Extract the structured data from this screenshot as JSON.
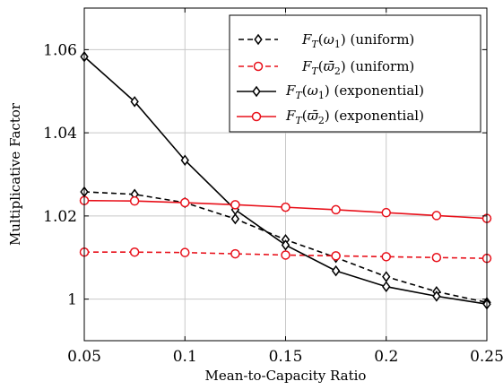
{
  "chart_data": {
    "type": "line",
    "xlabel": "Mean-to-Capacity Ratio",
    "ylabel": "Multiplicative Factor",
    "xlim": [
      0.05,
      0.25
    ],
    "ylim": [
      0.99,
      1.07
    ],
    "xticks": [
      0.05,
      0.1,
      0.15,
      0.2,
      0.25
    ],
    "xtick_labels": [
      "0.05",
      "0.1",
      "0.15",
      "0.2",
      "0.25"
    ],
    "yticks": [
      1.0,
      1.02,
      1.04,
      1.06
    ],
    "ytick_labels": [
      "1",
      "1.02",
      "1.04",
      "1.06"
    ],
    "grid": true,
    "legend_position": "top-right",
    "x": [
      0.05,
      0.075,
      0.1,
      0.125,
      0.15,
      0.175,
      0.2,
      0.225,
      0.25
    ],
    "series": [
      {
        "legend": "F_T(ω1) (uniform)",
        "color": "#000000",
        "dash": "dashed",
        "marker": "diamond",
        "values": [
          1.0258,
          1.0252,
          1.0232,
          1.0193,
          1.0143,
          1.01,
          1.0054,
          1.0018,
          0.9992
        ]
      },
      {
        "legend": "F_T(ϖ2) (uniform)",
        "color": "#e8101a",
        "dash": "dashed",
        "marker": "circle",
        "values": [
          1.0113,
          1.0113,
          1.0112,
          1.0109,
          1.0106,
          1.0104,
          1.0102,
          1.01,
          1.0098
        ]
      },
      {
        "legend": "F_T(ω1) (exponential)",
        "color": "#000000",
        "dash": "solid",
        "marker": "diamond",
        "values": [
          1.0583,
          1.0475,
          1.0334,
          1.0215,
          1.013,
          1.0068,
          1.003,
          1.0007,
          0.9988
        ]
      },
      {
        "legend": "F_T(ϖ2) (exponential)",
        "color": "#e8101a",
        "dash": "solid",
        "marker": "circle",
        "values": [
          1.0237,
          1.0236,
          1.0232,
          1.0227,
          1.0221,
          1.0215,
          1.0208,
          1.0201,
          1.0194
        ]
      }
    ]
  }
}
